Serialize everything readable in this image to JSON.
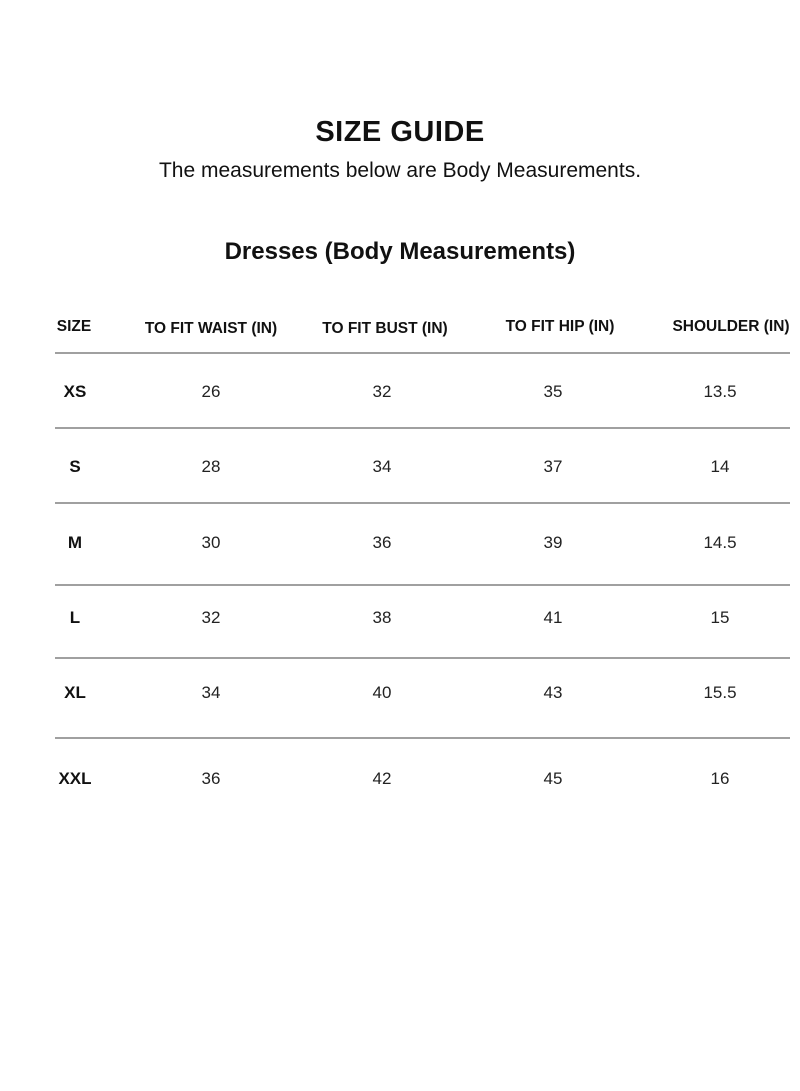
{
  "title": "SIZE GUIDE",
  "subtitle": "The measurements below are Body Measurements.",
  "section_title": "Dresses (Body Measurements)",
  "table": {
    "headers": [
      "SIZE",
      "TO FIT WAIST (IN)",
      "TO FIT BUST (IN)",
      "TO FIT HIP (IN)",
      "SHOULDER (IN)"
    ],
    "rows": [
      [
        "XS",
        "26",
        "32",
        "35",
        "13.5"
      ],
      [
        "S",
        "28",
        "34",
        "37",
        "14"
      ],
      [
        "M",
        "30",
        "36",
        "39",
        "14.5"
      ],
      [
        "L",
        "32",
        "38",
        "41",
        "15"
      ],
      [
        "XL",
        "34",
        "40",
        "43",
        "15.5"
      ],
      [
        "XXL",
        "36",
        "42",
        "45",
        "16"
      ]
    ]
  }
}
